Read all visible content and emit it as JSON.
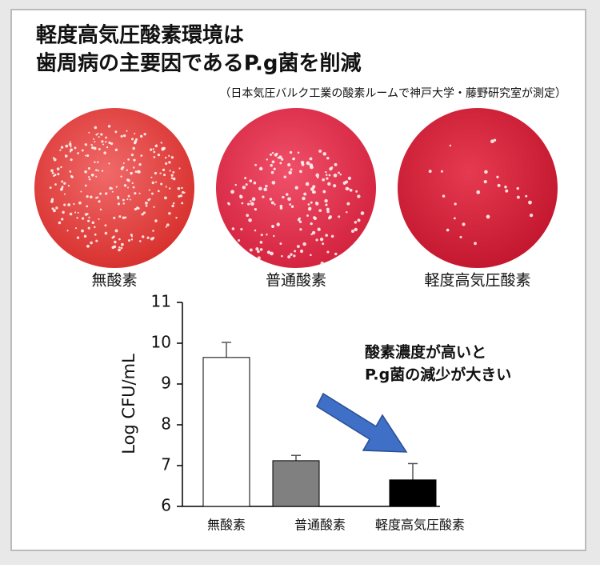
{
  "header": {
    "title_lines": [
      "軽度高気圧酸素環境は",
      "歯周病の主要因であるP.g菌を削減"
    ],
    "subtitle": "（日本気圧バルク工業の酸素ルームで神戸大学・藤野研究室が測定）"
  },
  "plates": [
    "無酸素",
    "普通酸素",
    "軽度高気圧酸素"
  ],
  "chart_data": {
    "type": "bar",
    "categories": [
      "無酸素",
      "普通酸素",
      "軽度高気圧酸素"
    ],
    "values": [
      9.65,
      7.12,
      6.65
    ],
    "errors": [
      0.37,
      0.13,
      0.4
    ],
    "colors": [
      "#ffffff",
      "#808080",
      "#000000"
    ],
    "y_label": "Log CFU/mL",
    "ylim": [
      6,
      11
    ],
    "yticks": [
      6,
      7,
      8,
      9,
      10,
      11
    ],
    "annotation": [
      "酸素濃度が高いと",
      "P.g菌の減少が大きい"
    ]
  }
}
